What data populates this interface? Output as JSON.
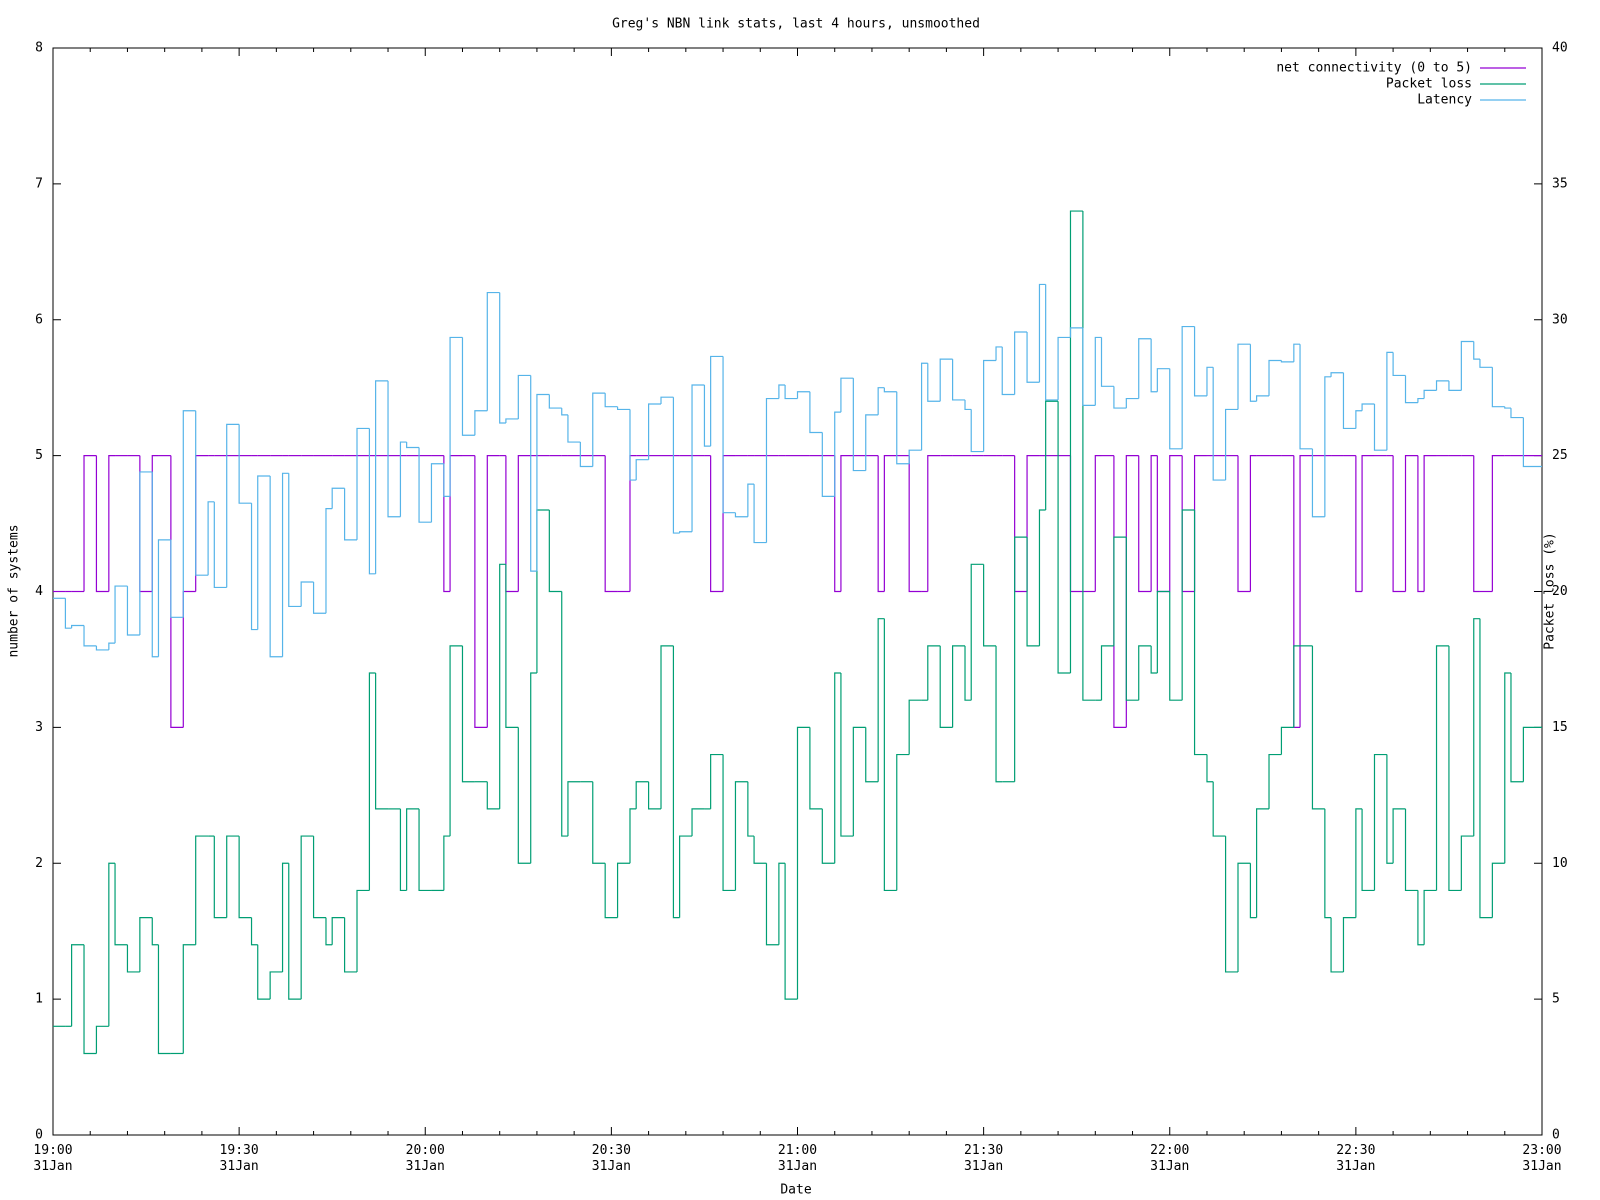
{
  "chart_data": {
    "type": "line",
    "step": true,
    "title": "Greg's NBN link stats, last 4 hours, unsmoothed",
    "x_label": "Date",
    "y_label": "number of systems",
    "y2_label": "Packet loss (%)",
    "legend": "top right",
    "x": [
      "19:00",
      "19:02",
      "19:03",
      "19:05",
      "19:07",
      "19:09",
      "19:10",
      "19:12",
      "19:14",
      "19:16",
      "19:17",
      "19:19",
      "19:21",
      "19:23",
      "19:25",
      "19:26",
      "19:28",
      "19:30",
      "19:32",
      "19:33",
      "19:35",
      "19:37",
      "19:38",
      "19:40",
      "19:42",
      "19:44",
      "19:45",
      "19:47",
      "19:49",
      "19:51",
      "19:52",
      "19:54",
      "19:56",
      "19:57",
      "19:59",
      "20:01",
      "20:03",
      "20:04",
      "20:06",
      "20:08",
      "20:10",
      "20:12",
      "20:13",
      "20:15",
      "20:17",
      "20:18",
      "20:20",
      "20:22",
      "20:23",
      "20:25",
      "20:27",
      "20:29",
      "20:31",
      "20:33",
      "20:34",
      "20:36",
      "20:38",
      "20:40",
      "20:41",
      "20:43",
      "20:45",
      "20:46",
      "20:48",
      "20:50",
      "20:52",
      "20:53",
      "20:55",
      "20:57",
      "20:58",
      "21:00",
      "21:02",
      "21:04",
      "21:06",
      "21:07",
      "21:09",
      "21:11",
      "21:13",
      "21:14",
      "21:16",
      "21:18",
      "21:20",
      "21:21",
      "21:23",
      "21:25",
      "21:27",
      "21:28",
      "21:30",
      "21:32",
      "21:33",
      "21:35",
      "21:37",
      "21:39",
      "21:40",
      "21:42",
      "21:44",
      "21:46",
      "21:48",
      "21:49",
      "21:51",
      "21:53",
      "21:55",
      "21:57",
      "21:58",
      "22:00",
      "22:02",
      "22:04",
      "22:06",
      "22:07",
      "22:09",
      "22:11",
      "22:13",
      "22:14",
      "22:16",
      "22:18",
      "22:20",
      "22:21",
      "22:23",
      "22:25",
      "22:26",
      "22:28",
      "22:30",
      "22:31",
      "22:33",
      "22:35",
      "22:36",
      "22:38",
      "22:40",
      "22:41",
      "22:43",
      "22:45",
      "22:47",
      "22:49",
      "22:50",
      "22:52",
      "22:54",
      "22:55",
      "22:57"
    ],
    "xlim": [
      "19:00",
      "23:00"
    ],
    "xticks": [
      {
        "value": "19:00",
        "label": "19:00\n31Jan"
      },
      {
        "value": "19:30",
        "label": "19:30\n31Jan"
      },
      {
        "value": "20:00",
        "label": "20:00\n31Jan"
      },
      {
        "value": "20:30",
        "label": "20:30\n31Jan"
      },
      {
        "value": "21:00",
        "label": "21:00\n31Jan"
      },
      {
        "value": "21:30",
        "label": "21:30\n31Jan"
      },
      {
        "value": "22:00",
        "label": "22:00\n31Jan"
      },
      {
        "value": "22:30",
        "label": "22:30\n31Jan"
      },
      {
        "value": "23:00",
        "label": "23:00\n31Jan"
      }
    ],
    "ylim": [
      0,
      8
    ],
    "yticks": [
      0,
      1,
      2,
      3,
      4,
      5,
      6,
      7,
      8
    ],
    "y2lim": [
      0,
      40
    ],
    "y2ticks": [
      0,
      5,
      10,
      15,
      20,
      25,
      30,
      35,
      40
    ],
    "series": [
      {
        "name": "net connectivity (0 to 5)",
        "color": "#9400d3",
        "values": [
          4,
          4,
          4,
          5,
          4,
          5,
          5,
          5,
          4,
          5,
          5,
          3,
          4,
          5,
          5,
          5,
          5,
          5,
          5,
          5,
          5,
          5,
          5,
          5,
          5,
          5,
          5,
          5,
          5,
          5,
          5,
          5,
          5,
          5,
          5,
          5,
          4,
          5,
          5,
          3,
          5,
          5,
          4,
          5,
          5,
          5,
          5,
          5,
          5,
          5,
          5,
          4,
          4,
          5,
          5,
          5,
          5,
          5,
          5,
          5,
          5,
          4,
          5,
          5,
          5,
          5,
          5,
          5,
          5,
          5,
          5,
          5,
          4,
          5,
          5,
          5,
          4,
          5,
          5,
          4,
          4,
          5,
          5,
          5,
          5,
          5,
          5,
          5,
          5,
          4,
          5,
          5,
          5,
          5,
          4,
          4,
          5,
          5,
          3,
          5,
          4,
          5,
          4,
          5,
          4,
          5,
          5,
          5,
          5,
          4,
          5,
          5,
          5,
          5,
          3,
          5,
          5,
          5,
          5,
          5,
          4,
          5,
          5,
          5,
          4,
          5,
          4,
          5,
          5,
          5,
          5,
          4,
          4,
          5,
          5,
          5,
          5
        ]
      },
      {
        "name": "Packet loss",
        "color": "#009e73",
        "axis": "y2",
        "values": [
          4,
          4,
          7,
          3,
          4,
          10,
          7,
          6,
          8,
          7,
          3,
          3,
          7,
          11,
          11,
          8,
          11,
          8,
          7,
          5,
          6,
          10,
          5,
          11,
          8,
          7,
          8,
          6,
          9,
          17,
          12,
          12,
          9,
          12,
          9,
          9,
          11,
          18,
          13,
          13,
          12,
          21,
          15,
          10,
          17,
          23,
          20,
          11,
          13,
          13,
          10,
          8,
          10,
          12,
          13,
          12,
          18,
          8,
          11,
          12,
          12,
          14,
          9,
          13,
          11,
          10,
          7,
          10,
          5,
          15,
          12,
          10,
          17,
          11,
          15,
          13,
          19,
          9,
          14,
          16,
          16,
          18,
          15,
          18,
          16,
          21,
          18,
          13,
          13,
          22,
          18,
          23,
          27,
          17,
          34,
          16,
          16,
          18,
          22,
          16,
          18,
          17,
          20,
          16,
          23,
          14,
          13,
          11,
          6,
          10,
          8,
          12,
          14,
          15,
          18,
          18,
          12,
          8,
          6,
          8,
          12,
          9,
          14,
          10,
          12,
          9,
          7,
          9,
          18,
          9,
          11,
          19,
          8,
          10,
          17,
          13,
          15
        ]
      },
      {
        "name": "Latency",
        "color": "#56b4e9",
        "values": [
          3.95,
          3.73,
          3.75,
          3.6,
          3.57,
          3.62,
          4.04,
          3.68,
          4.88,
          3.52,
          4.38,
          3.81,
          5.33,
          4.12,
          4.66,
          4.03,
          5.23,
          4.65,
          3.72,
          4.85,
          3.52,
          4.87,
          3.89,
          4.07,
          3.84,
          4.61,
          4.76,
          4.38,
          5.2,
          4.13,
          5.55,
          4.55,
          5.1,
          5.06,
          4.51,
          4.94,
          4.7,
          5.87,
          5.15,
          5.33,
          6.2,
          5.24,
          5.27,
          5.59,
          4.15,
          5.45,
          5.35,
          5.3,
          5.1,
          4.92,
          5.46,
          5.36,
          5.34,
          4.82,
          4.97,
          5.38,
          5.43,
          4.43,
          4.44,
          5.52,
          5.07,
          5.73,
          4.58,
          4.55,
          4.79,
          4.36,
          5.42,
          5.52,
          5.42,
          5.47,
          5.17,
          4.7,
          5.32,
          5.57,
          4.89,
          5.3,
          5.5,
          5.47,
          4.94,
          5.04,
          5.68,
          5.4,
          5.71,
          5.41,
          5.34,
          5.03,
          5.7,
          5.8,
          5.45,
          5.91,
          5.54,
          6.26,
          5.41,
          5.87,
          5.94,
          5.37,
          5.87,
          5.51,
          5.35,
          5.42,
          5.86,
          5.47,
          5.64,
          5.05,
          5.95,
          5.44,
          5.65,
          4.82,
          5.34,
          5.82,
          5.4,
          5.44,
          5.7,
          5.69,
          5.82,
          5.05,
          4.55,
          5.58,
          5.61,
          5.2,
          5.33,
          5.38,
          5.04,
          5.76,
          5.59,
          5.39,
          5.42,
          5.48,
          5.55,
          5.48,
          5.84,
          5.71,
          5.65,
          5.36,
          5.35,
          5.28,
          4.92
        ]
      }
    ]
  }
}
